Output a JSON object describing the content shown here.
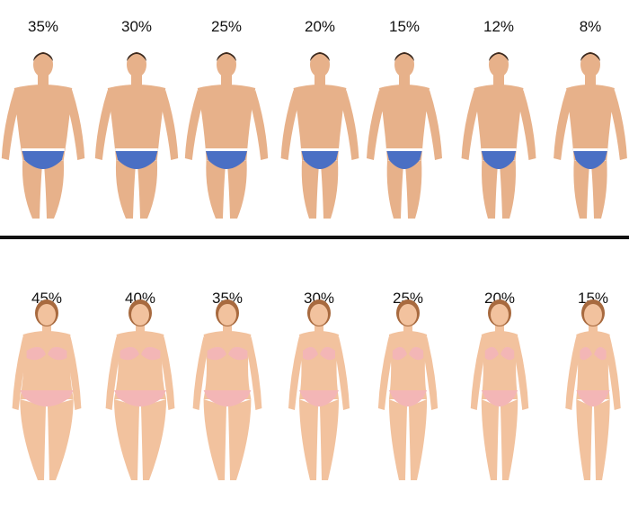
{
  "men": {
    "labels": [
      "35%",
      "30%",
      "25%",
      "20%",
      "15%",
      "12%",
      "8%"
    ],
    "figure_name": "male-figure",
    "skin_color": "#e7b18a",
    "underwear_color": "#4a6fc4",
    "underwear_stripe_color": "#ffffff"
  },
  "women": {
    "labels": [
      "45%",
      "40%",
      "35%",
      "30%",
      "25%",
      "20%",
      "15%"
    ],
    "figure_name": "female-figure",
    "skin_color": "#f2c29e",
    "underwear_color": "#f3b6b6",
    "hair_color": "#a86a3f"
  },
  "divider_color": "#111111"
}
